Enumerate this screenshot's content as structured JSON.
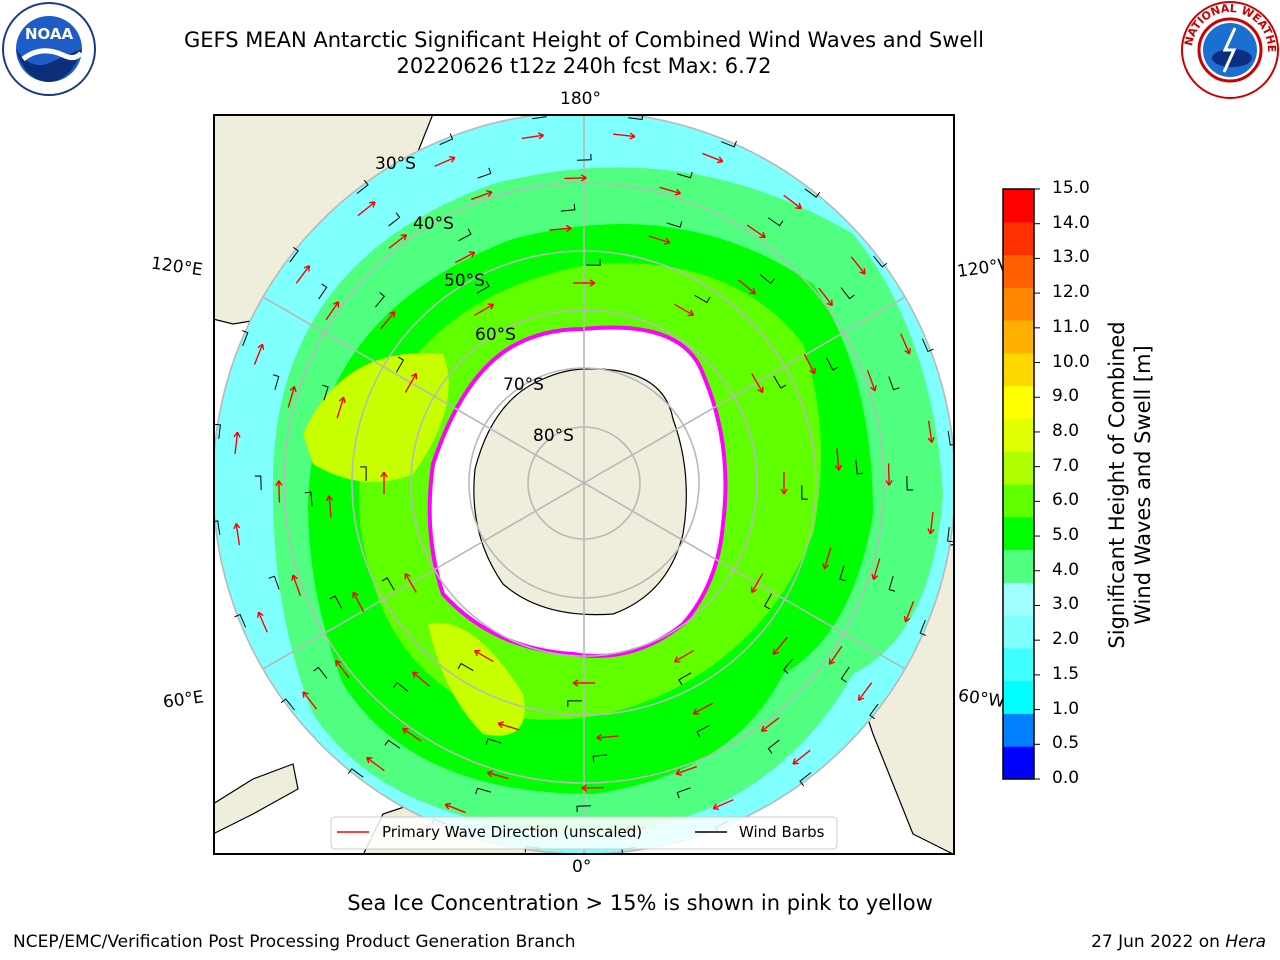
{
  "title": {
    "line1": "GEFS MEAN Antarctic Significant Height of Combined Wind Waves and Swell",
    "line2": "20220626 t12z 240h fcst   Max: 6.72"
  },
  "axes": {
    "lon_labels": {
      "top": "180°",
      "bottom": "0°",
      "left_upper": "120°E",
      "right_upper": "120°W",
      "left_lower": "60°E",
      "right_lower": "60°W"
    },
    "lat_labels": [
      "30°S",
      "40°S",
      "50°S",
      "60°S",
      "70°S",
      "80°S"
    ]
  },
  "legend": {
    "primary_wave": "Primary Wave Direction (unscaled)",
    "wind_barbs": "Wind Barbs",
    "primary_wave_color": "#ff0000",
    "wind_barbs_color": "#000000"
  },
  "colorbar": {
    "title_line1": "Significant Height of Combined",
    "title_line2": "Wind Waves and Swell [m]",
    "ticks": [
      "15.0",
      "14.0",
      "13.0",
      "12.0",
      "11.0",
      "10.0",
      "9.0",
      "8.0",
      "7.0",
      "6.0",
      "5.0",
      "4.0",
      "3.0",
      "2.0",
      "1.5",
      "1.0",
      "0.5",
      "0.0"
    ],
    "colors_bottom_to_top": [
      "#0000ff",
      "#0080ff",
      "#00ffff",
      "#40ffff",
      "#80ffff",
      "#a0ffff",
      "#50ff80",
      "#00ff00",
      "#60ff00",
      "#b0ff00",
      "#e0ff00",
      "#ffff00",
      "#ffd800",
      "#ffb000",
      "#ff8800",
      "#ff6000",
      "#ff3000",
      "#ff0000"
    ]
  },
  "footnote": "Sea Ice Concentration > 15% is shown in pink to yellow",
  "credit": "NCEP/EMC/Verification Post Processing Product Generation Branch",
  "date": {
    "text": "27 Jun 2022 on",
    "machine": "Hera"
  },
  "logos": {
    "left": "NOAA",
    "right": "NATIONAL WEATHER SERVICE"
  },
  "colors": {
    "land": "#efeddc",
    "ice_shelf": "#ffffff",
    "sea_ice_edge": "#ff00ff",
    "graticule": "#b8b8b8"
  }
}
